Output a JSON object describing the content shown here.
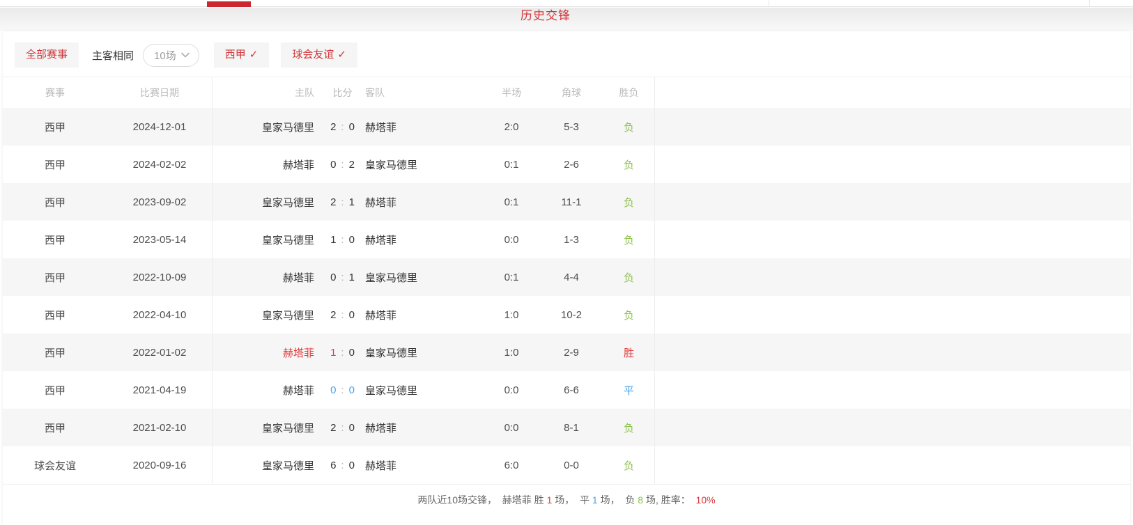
{
  "page": {
    "title": "历史交锋"
  },
  "colors": {
    "accent": "#d2373c",
    "win": "#e23c3c",
    "draw": "#4aa2e9",
    "loss": "#8cc04a"
  },
  "filters": {
    "all_events": "全部赛事",
    "home_away_same": "主客相同",
    "match_count": "10场",
    "check_mark": "✓",
    "league_option": "西甲",
    "friendly_option": "球会友谊"
  },
  "table": {
    "score_separator": ":",
    "headers": {
      "league": "赛事",
      "date": "比赛日期",
      "home": "主队",
      "score": "比分",
      "away": "客队",
      "half": "半场",
      "corner": "角球",
      "result": "胜负"
    },
    "rows": [
      {
        "league": "西甲",
        "date": "2024-12-01",
        "home": "皇家马德里",
        "hs": "2",
        "as": "0",
        "away": "赫塔菲",
        "half": "2:0",
        "corner": "5-3",
        "result": "负",
        "result_style": "loss"
      },
      {
        "league": "西甲",
        "date": "2024-02-02",
        "home": "赫塔菲",
        "hs": "0",
        "as": "2",
        "away": "皇家马德里",
        "half": "0:1",
        "corner": "2-6",
        "result": "负",
        "result_style": "loss"
      },
      {
        "league": "西甲",
        "date": "2023-09-02",
        "home": "皇家马德里",
        "hs": "2",
        "as": "1",
        "away": "赫塔菲",
        "half": "0:1",
        "corner": "11-1",
        "result": "负",
        "result_style": "loss"
      },
      {
        "league": "西甲",
        "date": "2023-05-14",
        "home": "皇家马德里",
        "hs": "1",
        "as": "0",
        "away": "赫塔菲",
        "half": "0:0",
        "corner": "1-3",
        "result": "负",
        "result_style": "loss"
      },
      {
        "league": "西甲",
        "date": "2022-10-09",
        "home": "赫塔菲",
        "hs": "0",
        "as": "1",
        "away": "皇家马德里",
        "half": "0:1",
        "corner": "4-4",
        "result": "负",
        "result_style": "loss"
      },
      {
        "league": "西甲",
        "date": "2022-04-10",
        "home": "皇家马德里",
        "hs": "2",
        "as": "0",
        "away": "赫塔菲",
        "half": "1:0",
        "corner": "10-2",
        "result": "负",
        "result_style": "loss"
      },
      {
        "league": "西甲",
        "date": "2022-01-02",
        "home": "赫塔菲",
        "hs": "1",
        "as": "0",
        "away": "皇家马德里",
        "half": "1:0",
        "corner": "2-9",
        "result": "胜",
        "result_style": "win",
        "home_style": "win",
        "hs_style": "win"
      },
      {
        "league": "西甲",
        "date": "2021-04-19",
        "home": "赫塔菲",
        "hs": "0",
        "as": "0",
        "away": "皇家马德里",
        "half": "0:0",
        "corner": "6-6",
        "result": "平",
        "result_style": "draw",
        "hs_style": "draw",
        "as_style": "draw"
      },
      {
        "league": "西甲",
        "date": "2021-02-10",
        "home": "皇家马德里",
        "hs": "2",
        "as": "0",
        "away": "赫塔菲",
        "half": "0:0",
        "corner": "8-1",
        "result": "负",
        "result_style": "loss"
      },
      {
        "league": "球会友谊",
        "date": "2020-09-16",
        "home": "皇家马德里",
        "hs": "6",
        "as": "0",
        "away": "赫塔菲",
        "half": "6:0",
        "corner": "0-0",
        "result": "负",
        "result_style": "loss"
      }
    ]
  },
  "summary": {
    "segments": [
      {
        "text": "两队近10场交锋，  赫塔菲 胜 ",
        "style": ""
      },
      {
        "text": "1",
        "style": "win"
      },
      {
        "text": " 场，  平 ",
        "style": ""
      },
      {
        "text": "1",
        "style": "draw"
      },
      {
        "text": " 场，  负 ",
        "style": ""
      },
      {
        "text": "8",
        "style": "loss"
      },
      {
        "text": " 场, 胜率：  ",
        "style": ""
      },
      {
        "text": "10%",
        "style": "rate"
      }
    ]
  }
}
